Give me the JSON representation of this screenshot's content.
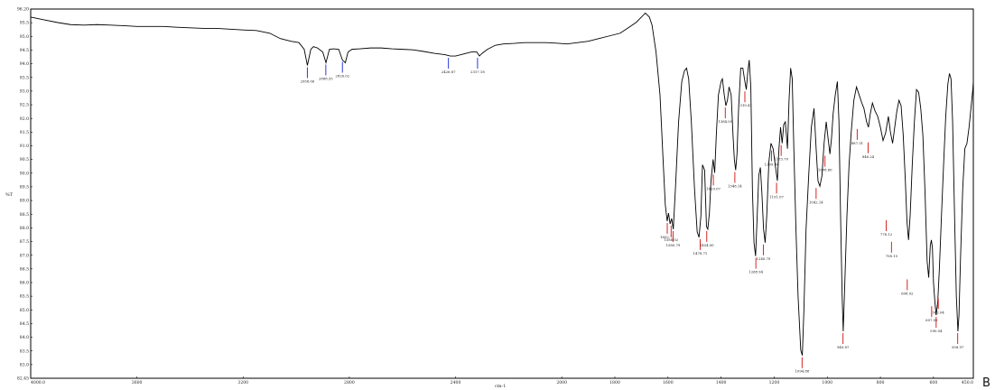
{
  "panel_label": "B",
  "chart_data": {
    "type": "line",
    "xlabel": "cm-1",
    "ylabel": "%T",
    "xlim": [
      4000.0,
      450.0
    ],
    "ylim": [
      82.45,
      96.2
    ],
    "grid": false,
    "line_color": "#000000",
    "peak_colors": {
      "weak": "#2b3bd6",
      "strong": "#d62626"
    },
    "y_tick_labels": [
      "96.20",
      "95.5",
      "95.0",
      "94.5",
      "94.0",
      "93.5",
      "93.0",
      "92.5",
      "92.0",
      "91.5",
      "91.0",
      "90.5",
      "90.0",
      "89.5",
      "89.0",
      "88.5",
      "88.0",
      "87.5",
      "87.0",
      "86.5",
      "86.0",
      "85.5",
      "85.0",
      "84.5",
      "84.0",
      "83.5",
      "83.0",
      "82.45"
    ],
    "x_tick_labels": [
      "4000.0",
      "3600",
      "3200",
      "2800",
      "2400",
      "2000",
      "1800",
      "1600",
      "1400",
      "1200",
      "1000",
      "800",
      "600",
      "450.0"
    ],
    "x_tick_values": [
      4000,
      3600,
      3200,
      2800,
      2400,
      2000,
      1800,
      1600,
      1400,
      1200,
      1000,
      800,
      600,
      450
    ],
    "spectrum": [
      [
        4000,
        95.9
      ],
      [
        3950,
        95.8
      ],
      [
        3900,
        95.7
      ],
      [
        3850,
        95.62
      ],
      [
        3800,
        95.6
      ],
      [
        3750,
        95.62
      ],
      [
        3700,
        95.6
      ],
      [
        3650,
        95.58
      ],
      [
        3600,
        95.55
      ],
      [
        3550,
        95.55
      ],
      [
        3500,
        95.55
      ],
      [
        3450,
        95.52
      ],
      [
        3400,
        95.5
      ],
      [
        3350,
        95.48
      ],
      [
        3300,
        95.48
      ],
      [
        3250,
        95.45
      ],
      [
        3200,
        95.42
      ],
      [
        3150,
        95.4
      ],
      [
        3100,
        95.3
      ],
      [
        3060,
        95.1
      ],
      [
        3020,
        95.0
      ],
      [
        2990,
        94.95
      ],
      [
        2970,
        94.7
      ],
      [
        2958,
        94.1
      ],
      [
        2945,
        94.7
      ],
      [
        2935,
        94.8
      ],
      [
        2920,
        94.75
      ],
      [
        2900,
        94.6
      ],
      [
        2888,
        94.2
      ],
      [
        2875,
        94.7
      ],
      [
        2860,
        94.72
      ],
      [
        2840,
        94.7
      ],
      [
        2826,
        94.3
      ],
      [
        2815,
        94.2
      ],
      [
        2805,
        94.6
      ],
      [
        2790,
        94.7
      ],
      [
        2760,
        94.72
      ],
      [
        2720,
        94.75
      ],
      [
        2680,
        94.75
      ],
      [
        2640,
        94.72
      ],
      [
        2600,
        94.7
      ],
      [
        2560,
        94.68
      ],
      [
        2520,
        94.62
      ],
      [
        2480,
        94.55
      ],
      [
        2440,
        94.5
      ],
      [
        2420,
        94.45
      ],
      [
        2400,
        94.45
      ],
      [
        2380,
        94.5
      ],
      [
        2360,
        94.55
      ],
      [
        2340,
        94.6
      ],
      [
        2320,
        94.6
      ],
      [
        2310,
        94.45
      ],
      [
        2300,
        94.55
      ],
      [
        2280,
        94.7
      ],
      [
        2250,
        94.85
      ],
      [
        2220,
        94.9
      ],
      [
        2180,
        94.92
      ],
      [
        2140,
        94.95
      ],
      [
        2100,
        94.95
      ],
      [
        2060,
        94.95
      ],
      [
        2020,
        94.93
      ],
      [
        1980,
        94.9
      ],
      [
        1940,
        94.95
      ],
      [
        1900,
        95.0
      ],
      [
        1860,
        95.1
      ],
      [
        1820,
        95.2
      ],
      [
        1780,
        95.3
      ],
      [
        1750,
        95.5
      ],
      [
        1720,
        95.7
      ],
      [
        1700,
        95.9
      ],
      [
        1685,
        96.05
      ],
      [
        1670,
        95.9
      ],
      [
        1660,
        95.6
      ],
      [
        1645,
        94.6
      ],
      [
        1630,
        93.0
      ],
      [
        1618,
        90.5
      ],
      [
        1610,
        88.9
      ],
      [
        1603,
        88.3
      ],
      [
        1598,
        88.6
      ],
      [
        1592,
        88.2
      ],
      [
        1586,
        88.4
      ],
      [
        1580,
        88.0
      ],
      [
        1572,
        89.5
      ],
      [
        1560,
        92.0
      ],
      [
        1548,
        93.5
      ],
      [
        1538,
        93.9
      ],
      [
        1530,
        94.0
      ],
      [
        1522,
        93.6
      ],
      [
        1512,
        92.0
      ],
      [
        1500,
        89.5
      ],
      [
        1490,
        87.9
      ],
      [
        1483,
        87.7
      ],
      [
        1476,
        88.5
      ],
      [
        1470,
        90.4
      ],
      [
        1462,
        90.2
      ],
      [
        1455,
        88.1
      ],
      [
        1450,
        88.0
      ],
      [
        1444,
        88.6
      ],
      [
        1438,
        89.8
      ],
      [
        1430,
        90.6
      ],
      [
        1424,
        90.1
      ],
      [
        1418,
        91.5
      ],
      [
        1410,
        93.0
      ],
      [
        1400,
        93.5
      ],
      [
        1395,
        93.6
      ],
      [
        1388,
        93.0
      ],
      [
        1382,
        92.6
      ],
      [
        1376,
        92.8
      ],
      [
        1370,
        93.3
      ],
      [
        1362,
        93.0
      ],
      [
        1355,
        91.5
      ],
      [
        1350,
        90.6
      ],
      [
        1345,
        90.2
      ],
      [
        1340,
        90.8
      ],
      [
        1334,
        92.5
      ],
      [
        1326,
        94.0
      ],
      [
        1318,
        94.0
      ],
      [
        1312,
        93.6
      ],
      [
        1305,
        93.2
      ],
      [
        1300,
        93.8
      ],
      [
        1294,
        94.3
      ],
      [
        1288,
        93.3
      ],
      [
        1282,
        89.5
      ],
      [
        1276,
        87.5
      ],
      [
        1270,
        87.0
      ],
      [
        1264,
        88.5
      ],
      [
        1258,
        90.0
      ],
      [
        1252,
        90.3
      ],
      [
        1246,
        89.3
      ],
      [
        1240,
        88.0
      ],
      [
        1234,
        87.5
      ],
      [
        1228,
        88.5
      ],
      [
        1220,
        90.5
      ],
      [
        1212,
        91.2
      ],
      [
        1204,
        91.0
      ],
      [
        1196,
        90.4
      ],
      [
        1188,
        89.8
      ],
      [
        1182,
        91.0
      ],
      [
        1176,
        91.8
      ],
      [
        1170,
        91.2
      ],
      [
        1164,
        91.9
      ],
      [
        1158,
        92.0
      ],
      [
        1150,
        91.0
      ],
      [
        1144,
        92.8
      ],
      [
        1138,
        94.0
      ],
      [
        1132,
        93.6
      ],
      [
        1126,
        91.0
      ],
      [
        1118,
        88.0
      ],
      [
        1110,
        85.5
      ],
      [
        1100,
        83.5
      ],
      [
        1094,
        83.3
      ],
      [
        1088,
        85.0
      ],
      [
        1080,
        88.0
      ],
      [
        1070,
        90.0
      ],
      [
        1060,
        91.8
      ],
      [
        1050,
        92.5
      ],
      [
        1042,
        91.0
      ],
      [
        1035,
        89.8
      ],
      [
        1028,
        89.6
      ],
      [
        1020,
        90.0
      ],
      [
        1012,
        91.2
      ],
      [
        1004,
        92.0
      ],
      [
        996,
        91.3
      ],
      [
        990,
        90.8
      ],
      [
        984,
        91.4
      ],
      [
        978,
        92.3
      ],
      [
        970,
        93.0
      ],
      [
        962,
        93.5
      ],
      [
        956,
        92.0
      ],
      [
        950,
        88.5
      ],
      [
        944,
        85.5
      ],
      [
        940,
        84.2
      ],
      [
        934,
        86.0
      ],
      [
        926,
        88.5
      ],
      [
        918,
        90.4
      ],
      [
        910,
        91.6
      ],
      [
        900,
        92.8
      ],
      [
        890,
        93.3
      ],
      [
        880,
        93.0
      ],
      [
        870,
        92.7
      ],
      [
        862,
        92.5
      ],
      [
        852,
        92.0
      ],
      [
        845,
        91.8
      ],
      [
        838,
        92.3
      ],
      [
        830,
        92.7
      ],
      [
        820,
        92.4
      ],
      [
        810,
        92.2
      ],
      [
        800,
        91.8
      ],
      [
        790,
        91.3
      ],
      [
        780,
        91.6
      ],
      [
        770,
        92.2
      ],
      [
        762,
        91.6
      ],
      [
        754,
        91.2
      ],
      [
        746,
        91.8
      ],
      [
        738,
        92.4
      ],
      [
        730,
        92.8
      ],
      [
        722,
        92.6
      ],
      [
        714,
        91.5
      ],
      [
        706,
        89.8
      ],
      [
        700,
        88.3
      ],
      [
        694,
        87.6
      ],
      [
        688,
        88.5
      ],
      [
        680,
        90.4
      ],
      [
        672,
        92.0
      ],
      [
        664,
        93.2
      ],
      [
        656,
        93.1
      ],
      [
        648,
        92.5
      ],
      [
        640,
        91.5
      ],
      [
        632,
        89.4
      ],
      [
        624,
        86.8
      ],
      [
        618,
        86.2
      ],
      [
        612,
        87.4
      ],
      [
        608,
        87.6
      ],
      [
        604,
        87.3
      ],
      [
        600,
        86.0
      ],
      [
        594,
        85.2
      ],
      [
        590,
        84.8
      ],
      [
        584,
        85.3
      ],
      [
        578,
        86.5
      ],
      [
        570,
        88.5
      ],
      [
        562,
        90.4
      ],
      [
        554,
        92.2
      ],
      [
        546,
        93.4
      ],
      [
        540,
        93.8
      ],
      [
        534,
        93.6
      ],
      [
        528,
        92.0
      ],
      [
        520,
        88.2
      ],
      [
        514,
        85.5
      ],
      [
        508,
        84.2
      ],
      [
        504,
        84.8
      ],
      [
        498,
        87.0
      ],
      [
        490,
        89.5
      ],
      [
        482,
        91.0
      ],
      [
        474,
        91.2
      ],
      [
        466,
        91.8
      ],
      [
        458,
        92.6
      ],
      [
        452,
        93.2
      ],
      [
        450,
        93.5
      ]
    ],
    "peaks": [
      {
        "x": 2958.06,
        "y": 94.1,
        "label": "2958.06",
        "color": "weak"
      },
      {
        "x": 2888.55,
        "y": 94.2,
        "label": "2888.55",
        "color": "weak"
      },
      {
        "x": 2826.02,
        "y": 94.3,
        "label": "2826.02",
        "color": "weak"
      },
      {
        "x": 2426.87,
        "y": 94.45,
        "label": "2426.87",
        "color": "weak"
      },
      {
        "x": 2317.18,
        "y": 94.45,
        "label": "2317.18",
        "color": "weak"
      },
      {
        "x": 1602.71,
        "y": 88.3,
        "label": "1602.71",
        "color": "strong"
      },
      {
        "x": 1588.02,
        "y": 88.2,
        "label": "1588.02",
        "color": "strong"
      },
      {
        "x": 1580.79,
        "y": 88.0,
        "label": "1580.79",
        "color": "strong"
      },
      {
        "x": 1478.71,
        "y": 87.7,
        "label": "1478.71",
        "color": "strong"
      },
      {
        "x": 1454.0,
        "y": 88.0,
        "label": "1454.00",
        "color": "strong"
      },
      {
        "x": 1429.07,
        "y": 90.1,
        "label": "1429.07",
        "color": "strong"
      },
      {
        "x": 1384.09,
        "y": 92.6,
        "label": "1384.09",
        "color": "strong"
      },
      {
        "x": 1348.14,
        "y": 90.2,
        "label": "1348.14",
        "color": "strong"
      },
      {
        "x": 1310.41,
        "y": 93.2,
        "label": "1310.41",
        "color": "strong"
      },
      {
        "x": 1268.94,
        "y": 87.0,
        "label": "1268.94",
        "color": "strong"
      },
      {
        "x": 1240.7,
        "y": 87.5,
        "label": "1240.70",
        "color": "strong"
      },
      {
        "x": 1209.94,
        "y": 91.0,
        "label": "1209.94",
        "color": "strong"
      },
      {
        "x": 1191.07,
        "y": 89.8,
        "label": "1191.07",
        "color": "strong"
      },
      {
        "x": 1173.7,
        "y": 91.2,
        "label": "1173.70",
        "color": "strong"
      },
      {
        "x": 1094.88,
        "y": 83.3,
        "label": "1094.88",
        "color": "strong"
      },
      {
        "x": 1042.14,
        "y": 89.6,
        "label": "1042.14",
        "color": "strong"
      },
      {
        "x": 1008.6,
        "y": 90.8,
        "label": "1008.60",
        "color": "strong"
      },
      {
        "x": 940.87,
        "y": 84.2,
        "label": "940.87",
        "color": "strong"
      },
      {
        "x": 887.31,
        "y": 91.8,
        "label": "887.31",
        "color": "strong"
      },
      {
        "x": 846.24,
        "y": 91.3,
        "label": "846.24",
        "color": "strong"
      },
      {
        "x": 778.12,
        "y": 88.4,
        "label": "778.12",
        "color": "strong"
      },
      {
        "x": 758.15,
        "y": 87.6,
        "label": "758.15",
        "color": "strong"
      },
      {
        "x": 698.92,
        "y": 86.2,
        "label": "698.92",
        "color": "strong"
      },
      {
        "x": 607.06,
        "y": 85.2,
        "label": "607.06",
        "color": "strong"
      },
      {
        "x": 590.04,
        "y": 84.8,
        "label": "590.04",
        "color": "strong"
      },
      {
        "x": 582.04,
        "y": 85.5,
        "label": "582.04",
        "color": "strong"
      },
      {
        "x": 508.97,
        "y": 84.2,
        "label": "508.97",
        "color": "strong"
      }
    ]
  }
}
